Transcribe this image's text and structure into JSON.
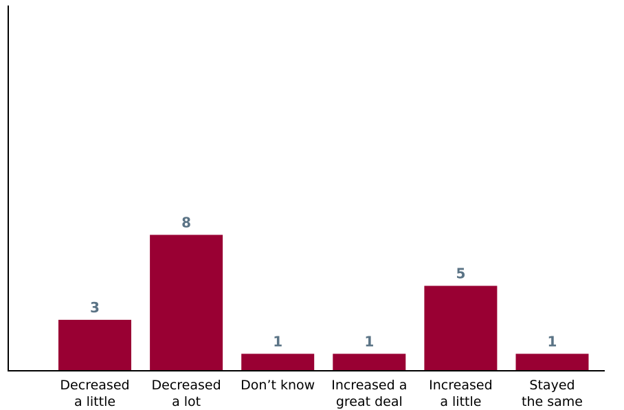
{
  "chart_data": {
    "type": "bar",
    "categories": [
      [
        "Decreased",
        "a little"
      ],
      [
        "Decreased",
        "a lot"
      ],
      [
        "Don’t know"
      ],
      [
        "Increased a",
        "great deal"
      ],
      [
        "Increased",
        "a little"
      ],
      [
        "Stayed",
        "the same"
      ]
    ],
    "values": [
      3,
      8,
      1,
      1,
      5,
      1
    ],
    "title": "",
    "xlabel": "",
    "ylabel": "",
    "ylim": [
      0,
      21.5
    ],
    "grid": false,
    "legend": "none",
    "colors": {
      "bar": "#990033",
      "value_label": "#5a7385",
      "axis": "#000000"
    }
  }
}
